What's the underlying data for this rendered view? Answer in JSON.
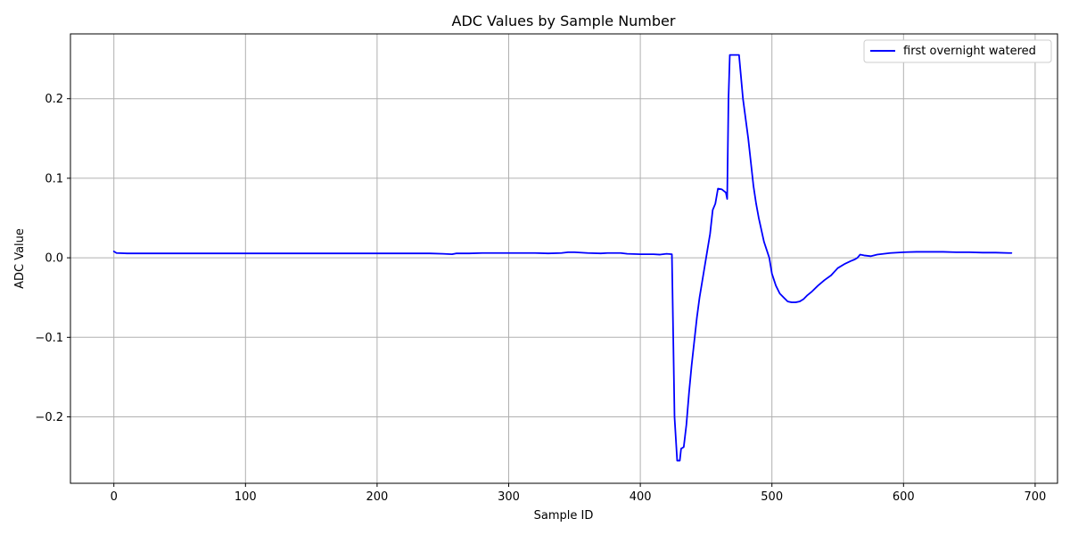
{
  "chart_data": {
    "type": "line",
    "title": "ADC Values by Sample Number",
    "xlabel": "Sample ID",
    "ylabel": "ADC Value",
    "xlim": [
      -33,
      717
    ],
    "ylim": [
      -0.2835,
      0.2815
    ],
    "xticks": [
      0,
      100,
      200,
      300,
      400,
      500,
      600,
      700
    ],
    "yticks": [
      -0.2,
      -0.1,
      0.0,
      0.1,
      0.2
    ],
    "xtick_labels": [
      "0",
      "100",
      "200",
      "300",
      "400",
      "500",
      "600",
      "700"
    ],
    "ytick_labels": [
      "−0.2",
      "−0.1",
      "0.0",
      "0.1",
      "0.2"
    ],
    "grid": true,
    "legend_position": "top-right",
    "series": [
      {
        "name": "first overnight watered",
        "color": "#0000ff",
        "x": [
          0,
          2,
          10,
          20,
          30,
          40,
          50,
          60,
          70,
          80,
          90,
          100,
          110,
          120,
          130,
          140,
          150,
          160,
          170,
          180,
          190,
          200,
          210,
          220,
          230,
          240,
          250,
          257,
          260,
          270,
          280,
          290,
          300,
          310,
          320,
          330,
          340,
          345,
          350,
          360,
          370,
          375,
          380,
          385,
          390,
          400,
          410,
          415,
          420,
          424,
          426,
          428,
          430,
          431,
          433,
          435,
          437,
          439,
          441,
          443,
          445,
          447,
          449,
          451,
          453,
          455,
          457,
          459,
          462,
          465,
          466,
          467,
          468,
          470,
          472,
          475,
          478,
          480,
          482,
          484,
          486,
          488,
          490,
          492,
          494,
          496,
          498,
          500,
          503,
          506,
          509,
          512,
          515,
          518,
          521,
          524,
          527,
          530,
          535,
          540,
          545,
          550,
          555,
          560,
          563,
          565,
          567,
          570,
          575,
          580,
          585,
          590,
          600,
          610,
          620,
          630,
          640,
          650,
          660,
          670,
          680,
          682
        ],
        "y": [
          0.008,
          0.006,
          0.0055,
          0.0055,
          0.0055,
          0.0055,
          0.0055,
          0.0055,
          0.0055,
          0.0055,
          0.0055,
          0.0055,
          0.0055,
          0.0055,
          0.0055,
          0.0055,
          0.0055,
          0.0055,
          0.0055,
          0.0055,
          0.0055,
          0.0055,
          0.0055,
          0.0055,
          0.0055,
          0.0055,
          0.005,
          0.0045,
          0.0055,
          0.0055,
          0.006,
          0.006,
          0.006,
          0.006,
          0.006,
          0.0055,
          0.006,
          0.007,
          0.007,
          0.006,
          0.0055,
          0.006,
          0.006,
          0.006,
          0.005,
          0.0045,
          0.0045,
          0.004,
          0.005,
          0.0045,
          -0.2,
          -0.255,
          -0.255,
          -0.24,
          -0.238,
          -0.21,
          -0.17,
          -0.135,
          -0.105,
          -0.075,
          -0.05,
          -0.03,
          -0.01,
          0.01,
          0.03,
          0.06,
          0.068,
          0.087,
          0.086,
          0.082,
          0.074,
          0.2,
          0.255,
          0.255,
          0.255,
          0.255,
          0.2,
          0.175,
          0.15,
          0.12,
          0.09,
          0.068,
          0.05,
          0.035,
          0.02,
          0.01,
          0.0,
          -0.02,
          -0.035,
          -0.045,
          -0.05,
          -0.055,
          -0.056,
          -0.056,
          -0.055,
          -0.052,
          -0.047,
          -0.043,
          -0.035,
          -0.028,
          -0.022,
          -0.013,
          -0.008,
          -0.004,
          -0.002,
          0.0,
          0.004,
          0.003,
          0.002,
          0.004,
          0.005,
          0.006,
          0.007,
          0.0075,
          0.0075,
          0.0075,
          0.007,
          0.007,
          0.0065,
          0.0065,
          0.006,
          0.006
        ]
      }
    ]
  }
}
